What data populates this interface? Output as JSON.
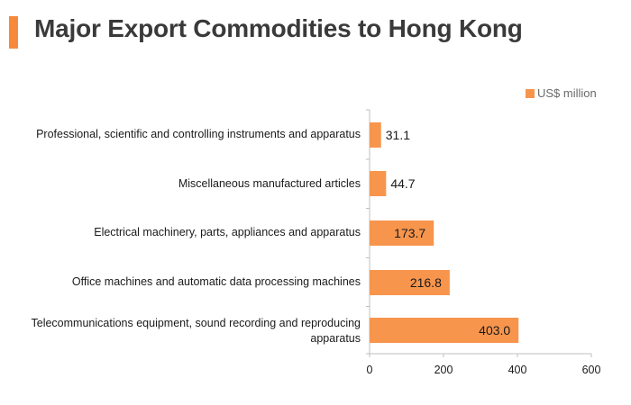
{
  "header": {
    "title": "Major Export Commodities to Hong Kong"
  },
  "chart_data": {
    "type": "bar",
    "orientation": "horizontal",
    "title": "Major Export Commodities to Hong Kong",
    "categories": [
      "Professional, scientific and controlling instruments and apparatus",
      "Miscellaneous manufactured articles",
      "Electrical machinery, parts, appliances and apparatus",
      "Office machines and automatic data processing machines",
      "Telecommunications equipment, sound recording and reproducing apparatus"
    ],
    "series": [
      {
        "name": "US$ million",
        "values": [
          31.1,
          44.7,
          173.7,
          216.8,
          403.0
        ],
        "labels": [
          "31.1",
          "44.7",
          "173.7",
          "216.8",
          "403.0"
        ]
      }
    ],
    "xlim": [
      0,
      600
    ],
    "xticks": [
      "0",
      "200",
      "400",
      "600"
    ],
    "xlabel": "",
    "ylabel": "",
    "grid": false,
    "legend": "top-right",
    "colors": {
      "bar": "#F7954D",
      "accent": "#F7893B",
      "axis": "#bfbfbf"
    }
  }
}
